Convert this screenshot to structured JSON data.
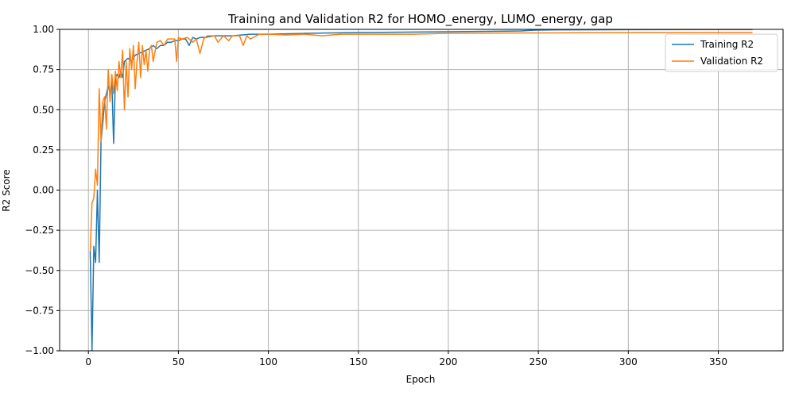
{
  "chart_data": {
    "type": "line",
    "title": "Training and Validation R2 for HOMO_energy, LUMO_energy, gap",
    "xlabel": "Epoch",
    "ylabel": "R2 Score",
    "xlim": [
      -16,
      386
    ],
    "ylim": [
      -1.0,
      1.0
    ],
    "xticks": [
      0,
      50,
      100,
      150,
      200,
      250,
      300,
      350
    ],
    "yticks": [
      -1.0,
      -0.75,
      -0.5,
      -0.25,
      0.0,
      0.25,
      0.5,
      0.75,
      1.0
    ],
    "xtick_labels": [
      "0",
      "50",
      "100",
      "150",
      "200",
      "250",
      "300",
      "350"
    ],
    "ytick_labels": [
      "−1.00",
      "−0.75",
      "−0.50",
      "−0.25",
      "0.00",
      "0.25",
      "0.50",
      "0.75",
      "1.00"
    ],
    "grid": true,
    "legend": "top-right",
    "series": [
      {
        "name": "Training R2",
        "color": "#1f77b4",
        "points": [
          [
            1,
            -0.38
          ],
          [
            2,
            -1.0
          ],
          [
            3,
            -0.35
          ],
          [
            4,
            -0.45
          ],
          [
            5,
            0.0
          ],
          [
            6,
            -0.45
          ],
          [
            7,
            0.3
          ],
          [
            8,
            0.42
          ],
          [
            9,
            0.55
          ],
          [
            10,
            0.6
          ],
          [
            11,
            0.65
          ],
          [
            12,
            0.6
          ],
          [
            13,
            0.68
          ],
          [
            14,
            0.29
          ],
          [
            15,
            0.7
          ],
          [
            16,
            0.72
          ],
          [
            17,
            0.7
          ],
          [
            18,
            0.74
          ],
          [
            19,
            0.7
          ],
          [
            20,
            0.8
          ],
          [
            22,
            0.82
          ],
          [
            24,
            0.8
          ],
          [
            26,
            0.84
          ],
          [
            28,
            0.85
          ],
          [
            30,
            0.86
          ],
          [
            32,
            0.87
          ],
          [
            34,
            0.88
          ],
          [
            36,
            0.9
          ],
          [
            38,
            0.88
          ],
          [
            40,
            0.9
          ],
          [
            42,
            0.9
          ],
          [
            44,
            0.92
          ],
          [
            46,
            0.92
          ],
          [
            48,
            0.93
          ],
          [
            50,
            0.93
          ],
          [
            52,
            0.94
          ],
          [
            54,
            0.94
          ],
          [
            56,
            0.9
          ],
          [
            58,
            0.95
          ],
          [
            60,
            0.94
          ],
          [
            62,
            0.95
          ],
          [
            65,
            0.95
          ],
          [
            70,
            0.96
          ],
          [
            75,
            0.96
          ],
          [
            80,
            0.96
          ],
          [
            90,
            0.97
          ],
          [
            100,
            0.97
          ],
          [
            120,
            0.975
          ],
          [
            150,
            0.98
          ],
          [
            200,
            0.985
          ],
          [
            240,
            0.99
          ],
          [
            248,
            0.995
          ],
          [
            260,
            0.997
          ],
          [
            300,
            0.998
          ],
          [
            350,
            0.999
          ],
          [
            369,
            0.999
          ]
        ]
      },
      {
        "name": "Validation R2",
        "color": "#ff7f0e",
        "points": [
          [
            1,
            -0.38
          ],
          [
            2,
            -0.08
          ],
          [
            3,
            -0.05
          ],
          [
            4,
            0.13
          ],
          [
            5,
            0.03
          ],
          [
            6,
            0.63
          ],
          [
            7,
            0.3
          ],
          [
            8,
            0.55
          ],
          [
            9,
            0.58
          ],
          [
            10,
            0.38
          ],
          [
            11,
            0.75
          ],
          [
            12,
            0.55
          ],
          [
            13,
            0.72
          ],
          [
            14,
            0.6
          ],
          [
            15,
            0.74
          ],
          [
            16,
            0.62
          ],
          [
            17,
            0.8
          ],
          [
            18,
            0.7
          ],
          [
            19,
            0.87
          ],
          [
            20,
            0.5
          ],
          [
            21,
            0.8
          ],
          [
            22,
            0.58
          ],
          [
            23,
            0.88
          ],
          [
            24,
            0.75
          ],
          [
            25,
            0.9
          ],
          [
            26,
            0.63
          ],
          [
            27,
            0.8
          ],
          [
            28,
            0.92
          ],
          [
            29,
            0.7
          ],
          [
            30,
            0.9
          ],
          [
            31,
            0.78
          ],
          [
            32,
            0.87
          ],
          [
            33,
            0.74
          ],
          [
            34,
            0.88
          ],
          [
            35,
            0.9
          ],
          [
            36,
            0.8
          ],
          [
            38,
            0.92
          ],
          [
            40,
            0.93
          ],
          [
            42,
            0.9
          ],
          [
            44,
            0.94
          ],
          [
            46,
            0.94
          ],
          [
            48,
            0.94
          ],
          [
            49,
            0.8
          ],
          [
            50,
            0.95
          ],
          [
            52,
            0.94
          ],
          [
            55,
            0.95
          ],
          [
            58,
            0.92
          ],
          [
            60,
            0.94
          ],
          [
            62,
            0.85
          ],
          [
            64,
            0.94
          ],
          [
            66,
            0.96
          ],
          [
            70,
            0.96
          ],
          [
            72,
            0.92
          ],
          [
            75,
            0.96
          ],
          [
            78,
            0.93
          ],
          [
            80,
            0.96
          ],
          [
            84,
            0.96
          ],
          [
            86,
            0.9
          ],
          [
            88,
            0.96
          ],
          [
            90,
            0.94
          ],
          [
            95,
            0.97
          ],
          [
            100,
            0.97
          ],
          [
            110,
            0.965
          ],
          [
            120,
            0.97
          ],
          [
            130,
            0.96
          ],
          [
            140,
            0.97
          ],
          [
            150,
            0.97
          ],
          [
            160,
            0.97
          ],
          [
            170,
            0.97
          ],
          [
            180,
            0.97
          ],
          [
            200,
            0.975
          ],
          [
            250,
            0.978
          ],
          [
            300,
            0.98
          ],
          [
            350,
            0.98
          ],
          [
            369,
            0.98
          ]
        ]
      }
    ]
  }
}
